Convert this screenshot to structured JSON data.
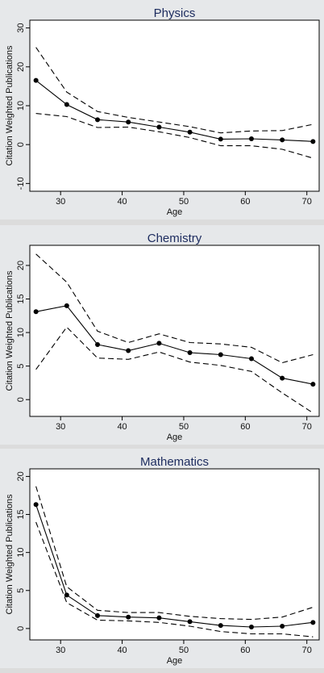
{
  "chart_data": [
    {
      "type": "line",
      "title": "Physics",
      "xlabel": "Age",
      "ylabel": "Citation Weighted Publications",
      "xlim": [
        25,
        72
      ],
      "ylim": [
        -12,
        32
      ],
      "xticks": [
        30,
        40,
        50,
        60,
        70
      ],
      "yticks": [
        -10,
        0,
        10,
        20,
        30
      ],
      "grid": false,
      "x": [
        26,
        31,
        36,
        41,
        46,
        51,
        56,
        61,
        66,
        71
      ],
      "series": [
        {
          "values": [
            16.5,
            10.3,
            6.4,
            5.8,
            4.5,
            3.2,
            1.4,
            1.5,
            1.2,
            0.8
          ],
          "style": "solid-markers"
        },
        {
          "values": [
            25.0,
            13.5,
            8.5,
            7.0,
            5.8,
            4.6,
            3.0,
            3.5,
            3.6,
            5.2
          ],
          "style": "dashed"
        },
        {
          "values": [
            8.0,
            7.2,
            4.4,
            4.5,
            3.3,
            1.8,
            -0.3,
            -0.3,
            -1.2,
            -3.5
          ],
          "style": "dashed"
        }
      ]
    },
    {
      "type": "line",
      "title": "Chemistry",
      "xlabel": "Age",
      "ylabel": "Citation Weighted Publications",
      "xlim": [
        25,
        72
      ],
      "ylim": [
        -2.5,
        23
      ],
      "xticks": [
        30,
        40,
        50,
        60,
        70
      ],
      "yticks": [
        0,
        5,
        10,
        15,
        20
      ],
      "grid": false,
      "x": [
        26,
        31,
        36,
        41,
        46,
        51,
        56,
        61,
        66,
        71
      ],
      "series": [
        {
          "values": [
            13.1,
            14.0,
            8.2,
            7.3,
            8.4,
            7.0,
            6.7,
            6.1,
            3.2,
            2.3
          ],
          "style": "solid-markers"
        },
        {
          "values": [
            21.7,
            17.5,
            10.2,
            8.5,
            9.8,
            8.5,
            8.3,
            7.8,
            5.5,
            6.7
          ],
          "style": "dashed"
        },
        {
          "values": [
            4.5,
            10.8,
            6.2,
            6.0,
            7.1,
            5.6,
            5.1,
            4.2,
            1.0,
            -2.0
          ],
          "style": "dashed"
        }
      ]
    },
    {
      "type": "line",
      "title": "Mathematics",
      "xlabel": "Age",
      "ylabel": "Citation Weighted Publications",
      "xlim": [
        25,
        72
      ],
      "ylim": [
        -1.5,
        21
      ],
      "xticks": [
        30,
        40,
        50,
        60,
        70
      ],
      "yticks": [
        0,
        5,
        10,
        15,
        20
      ],
      "grid": false,
      "x": [
        26,
        31,
        36,
        41,
        46,
        51,
        56,
        61,
        66,
        71
      ],
      "series": [
        {
          "values": [
            16.3,
            4.4,
            1.7,
            1.5,
            1.4,
            0.9,
            0.4,
            0.2,
            0.3,
            0.8
          ],
          "style": "solid-markers"
        },
        {
          "values": [
            18.7,
            5.5,
            2.4,
            2.1,
            2.1,
            1.6,
            1.3,
            1.2,
            1.5,
            2.8
          ],
          "style": "dashed"
        },
        {
          "values": [
            14.0,
            3.4,
            1.1,
            1.0,
            0.8,
            0.3,
            -0.4,
            -0.7,
            -0.7,
            -1.1
          ],
          "style": "dashed"
        }
      ]
    }
  ]
}
